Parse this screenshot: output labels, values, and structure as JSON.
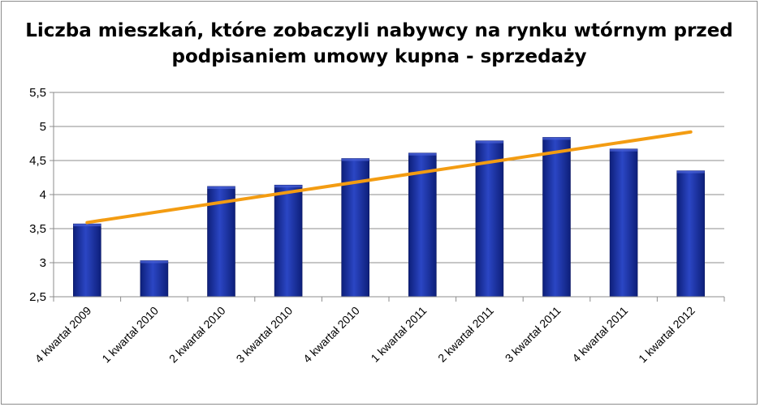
{
  "chart_data": {
    "type": "bar",
    "title": [
      "Liczba mieszkań, które zobaczyli nabywcy na rynku wtórnym przed",
      "podpisaniem umowy kupna - sprzedaży"
    ],
    "categories": [
      "4 kwartał 2009",
      "1 kwartał 2010",
      "2 kwartał 2010",
      "3 kwartał 2010",
      "4 kwartał 2010",
      "1 kwartał 2011",
      "2 kwartał 2011",
      "3 kwartał 2011",
      "4 kwartał 2011",
      "1 kwartał 2012"
    ],
    "values": [
      3.57,
      3.03,
      4.12,
      4.14,
      4.53,
      4.61,
      4.79,
      4.84,
      4.67,
      4.35
    ],
    "trendline": {
      "type": "linear",
      "start": 3.59,
      "end": 4.92,
      "color": "#f39c12"
    },
    "ylim": [
      2.5,
      5.5
    ],
    "yticks": [
      "2,5",
      "3",
      "3,5",
      "4",
      "4,5",
      "5",
      "5,5"
    ],
    "ytick_values": [
      2.5,
      3,
      3.5,
      4,
      4.5,
      5,
      5.5
    ],
    "grid": true,
    "legend": "none",
    "bar_color": "#1a2f9c",
    "xlabel": "",
    "ylabel": ""
  }
}
